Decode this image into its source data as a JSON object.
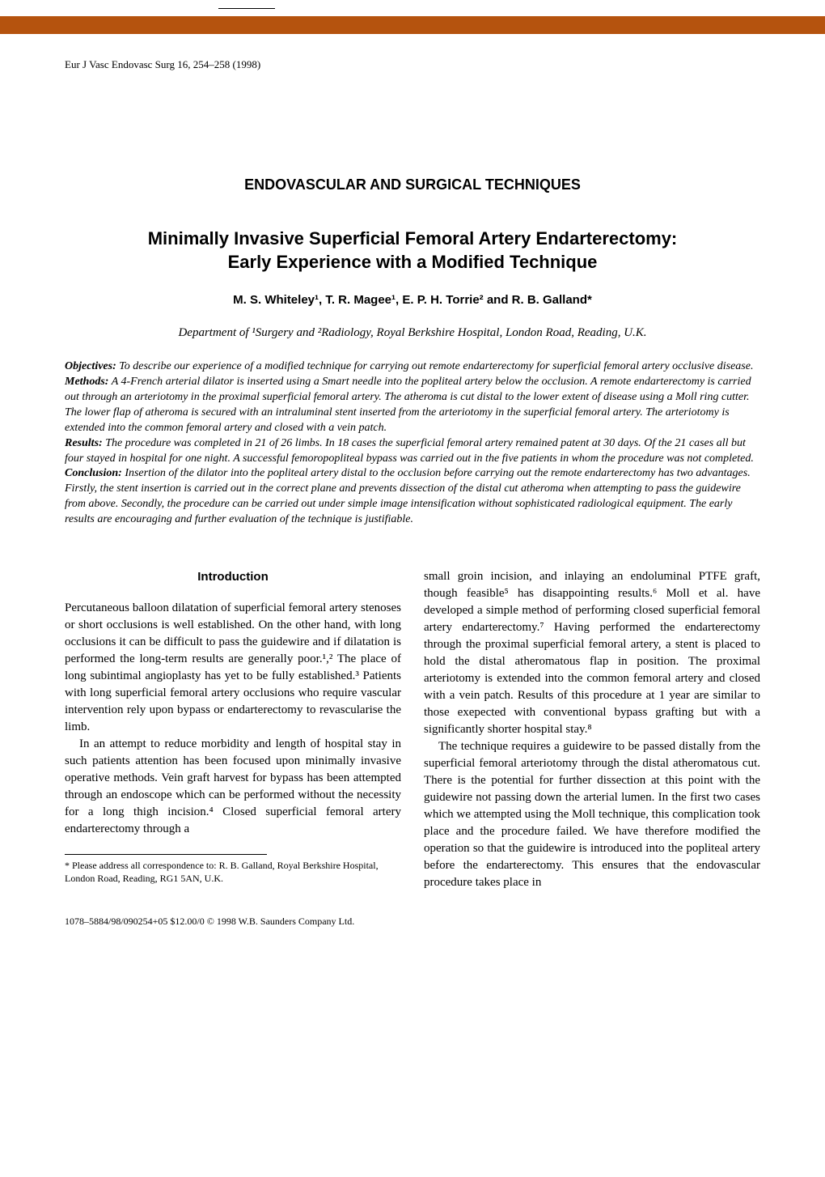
{
  "colors": {
    "bar": "#b5530e",
    "text": "#000000",
    "background": "#ffffff"
  },
  "journal_ref": "Eur J Vasc Endovasc Surg 16, 254–258 (1998)",
  "section_heading": "ENDOVASCULAR AND SURGICAL TECHNIQUES",
  "title_line1": "Minimally Invasive Superficial Femoral Artery Endarterectomy:",
  "title_line2": "Early Experience with a Modified Technique",
  "authors": "M. S. Whiteley¹, T. R. Magee¹, E. P. H. Torrie² and R. B. Galland*",
  "affiliation": "Department of ¹Surgery and ²Radiology, Royal Berkshire Hospital, London Road, Reading, U.K.",
  "abstract": {
    "objectives": {
      "label": "Objectives:",
      "text": " To describe our experience of a modified technique for carrying out remote endarterectomy for superficial femoral artery occlusive disease."
    },
    "methods": {
      "label": "Methods:",
      "text": " A 4-French arterial dilator is inserted using a Smart needle into the popliteal artery below the occlusion. A remote endarterectomy is carried out through an arteriotomy in the proximal superficial femoral artery. The atheroma is cut distal to the lower extent of disease using a Moll ring cutter. The lower flap of atheroma is secured with an intraluminal stent inserted from the arteriotomy in the superficial femoral artery. The arteriotomy is extended into the common femoral artery and closed with a vein patch."
    },
    "results": {
      "label": "Results:",
      "text": " The procedure was completed in 21 of 26 limbs. In 18 cases the superficial femoral artery remained patent at 30 days. Of the 21 cases all but four stayed in hospital for one night. A successful femoropopliteal bypass was carried out in the five patients in whom the procedure was not completed."
    },
    "conclusion": {
      "label": "Conclusion:",
      "text": " Insertion of the dilator into the popliteal artery distal to the occlusion before carrying out the remote endarterectomy has two advantages. Firstly, the stent insertion is carried out in the correct plane and prevents dissection of the distal cut atheroma when attempting to pass the guidewire from above. Secondly, the procedure can be carried out under simple image intensification without sophisticated radiological equipment. The early results are encouraging and further evaluation of the technique is justifiable."
    }
  },
  "intro_heading": "Introduction",
  "left_col": {
    "p1": "Percutaneous balloon dilatation of superficial femoral artery stenoses or short occlusions is well established. On the other hand, with long occlusions it can be difficult to pass the guidewire and if dilatation is performed the long-term results are generally poor.¹,² The place of long subintimal angioplasty has yet to be fully established.³ Patients with long superficial femoral artery occlusions who require vascular intervention rely upon bypass or endarterectomy to revascularise the limb.",
    "p2": "In an attempt to reduce morbidity and length of hospital stay in such patients attention has been focused upon minimally invasive operative methods. Vein graft harvest for bypass has been attempted through an endoscope which can be performed without the necessity for a long thigh incision.⁴ Closed superficial femoral artery endarterectomy through a"
  },
  "right_col": {
    "p1": "small groin incision, and inlaying an endoluminal PTFE graft, though feasible⁵ has disappointing results.⁶ Moll et al. have developed a simple method of performing closed superficial femoral artery endarterectomy.⁷ Having performed the endarterectomy through the proximal superficial femoral artery, a stent is placed to hold the distal atheromatous flap in position. The proximal arteriotomy is extended into the common femoral artery and closed with a vein patch. Results of this procedure at 1 year are similar to those exepected with conventional bypass grafting but with a significantly shorter hospital stay.⁸",
    "p2": "The technique requires a guidewire to be passed distally from the superficial femoral arteriotomy through the distal atheromatous cut. There is the potential for further dissection at this point with the guidewire not passing down the arterial lumen. In the first two cases which we attempted using the Moll technique, this complication took place and the procedure failed. We have therefore modified the operation so that the guidewire is introduced into the popliteal artery before the endarterectomy. This ensures that the endovascular procedure takes place in"
  },
  "footnote": "* Please address all correspondence to: R. B. Galland, Royal Berkshire Hospital, London Road, Reading, RG1 5AN, U.K.",
  "copyright": "1078–5884/98/090254+05 $12.00/0   © 1998 W.B. Saunders Company Ltd."
}
